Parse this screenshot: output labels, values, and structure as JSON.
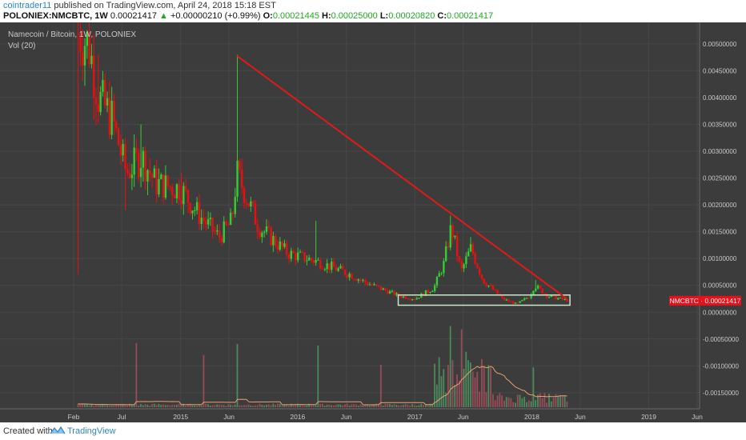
{
  "header": {
    "user": "cointrader11",
    "published": "published on TradingView.com, April 24, 2018 15:18 EST",
    "symbol": "POLONIEX:NMCBTC, 1W",
    "price": "0.00021417",
    "change_arrow": "▲",
    "change": "+0.00000210 (+0.99%)",
    "o_label": "O:",
    "o_value": "0.00021445",
    "h_label": "H:",
    "h_value": "0.00025000",
    "l_label": "L:",
    "l_value": "0.00020820",
    "c_label": "C:",
    "c_value": "0.00021417"
  },
  "legend": {
    "title": "Namecoin / Bitcoin, 1W, POLONIEX",
    "volume": "Vol (20)"
  },
  "price_tag": {
    "label": "NMCBTC · 0.00021417",
    "color": "#e8101a"
  },
  "footer": {
    "created_with": "Created with",
    "brand": "TradingView"
  },
  "colors": {
    "background": "#3c3c3c",
    "up": "#33cc33",
    "down": "#e81010",
    "trendline": "#e01a1a",
    "support_box": "#c8e6c8",
    "volume_ma": "#e8a070"
  },
  "chart_data": {
    "type": "candlestick",
    "title": "Namecoin / Bitcoin, 1W, POLONIEX",
    "x_axis": {
      "tick_labels": [
        "Feb",
        "Jul",
        "2015",
        "Jun",
        "2016",
        "Jun",
        "2017",
        "Jun",
        "2018",
        "Jun",
        "2019",
        "Jun"
      ],
      "tick_dates": [
        "2014-02-01",
        "2014-07-01",
        "2015-01-01",
        "2015-06-01",
        "2016-01-01",
        "2016-06-01",
        "2017-01-01",
        "2017-06-01",
        "2018-01-01",
        "2018-06-01",
        "2019-01-01",
        "2019-06-01"
      ]
    },
    "y_axis": {
      "range": [
        -0.0018,
        0.0054
      ],
      "tick_labels": [
        "0.00500000",
        "0.00450000",
        "0.00400000",
        "0.00350000",
        "0.00300000",
        "0.00250000",
        "0.00200000",
        "0.00150000",
        "0.00100000",
        "0.00050000",
        "0.00000000",
        "-0.00050000",
        "-0.00100000",
        "-0.00150000"
      ],
      "tick_values": [
        0.005,
        0.0045,
        0.004,
        0.0035,
        0.003,
        0.0025,
        0.002,
        0.0015,
        0.001,
        0.0005,
        0.0,
        -0.0005,
        -0.001,
        -0.0015
      ]
    },
    "last_price": 0.00021417,
    "anchors": [
      {
        "date": "2014-02-15",
        "close": 0.0052,
        "high": 0.0054,
        "low": 0.0007
      },
      {
        "date": "2014-03-20",
        "close": 0.005,
        "high": 0.0053
      },
      {
        "date": "2014-04-20",
        "close": 0.004,
        "high": 0.0048
      },
      {
        "date": "2014-06-01",
        "close": 0.0036,
        "high": 0.0042
      },
      {
        "date": "2014-07-15",
        "close": 0.0026,
        "high": 0.0032,
        "low": 0.0019
      },
      {
        "date": "2014-09-01",
        "close": 0.0029,
        "high": 0.0035
      },
      {
        "date": "2014-10-15",
        "close": 0.0024,
        "high": 0.0028
      },
      {
        "date": "2015-01-01",
        "close": 0.0023,
        "high": 0.0026
      },
      {
        "date": "2015-03-01",
        "close": 0.0018
      },
      {
        "date": "2015-05-01",
        "close": 0.0014
      },
      {
        "date": "2015-06-10",
        "close": 0.0017
      },
      {
        "date": "2015-06-25",
        "close": 0.0026,
        "high": 0.0048
      },
      {
        "date": "2015-09-01",
        "close": 0.0016
      },
      {
        "date": "2015-12-01",
        "close": 0.0011
      },
      {
        "date": "2016-03-01",
        "close": 0.00095,
        "high": 0.0017
      },
      {
        "date": "2016-06-15",
        "close": 0.0007
      },
      {
        "date": "2016-08-01",
        "close": 0.00055
      },
      {
        "date": "2016-11-15",
        "close": 0.0003
      },
      {
        "date": "2017-01-01",
        "close": 0.00025
      },
      {
        "date": "2017-03-01",
        "close": 0.00045
      },
      {
        "date": "2017-04-01",
        "close": 0.0009
      },
      {
        "date": "2017-04-25",
        "close": 0.0016,
        "high": 0.0018
      },
      {
        "date": "2017-05-25",
        "close": 0.00075
      },
      {
        "date": "2017-06-25",
        "close": 0.0012,
        "high": 0.0014
      },
      {
        "date": "2017-08-01",
        "close": 0.0006
      },
      {
        "date": "2017-10-01",
        "close": 0.00025
      },
      {
        "date": "2017-11-15",
        "close": 0.00015
      },
      {
        "date": "2017-12-25",
        "close": 0.0003
      },
      {
        "date": "2018-01-10",
        "close": 0.0005,
        "high": 0.0006
      },
      {
        "date": "2018-02-20",
        "close": 0.0003
      },
      {
        "date": "2018-04-24",
        "close": 0.00021417
      }
    ],
    "trendline": {
      "start": {
        "date": "2015-06-25",
        "value": 0.00478
      },
      "end": {
        "date": "2018-04-20",
        "value": 0.00025
      },
      "color": "#e01a1a"
    },
    "support_zone": {
      "x_start": "2016-11-10",
      "x_end": "2018-04-30",
      "y_min": 0.00013,
      "y_max": 0.00032,
      "color": "#c8e6c8"
    },
    "volume": {
      "label": "Vol (20)",
      "spike_dates": [
        "2014-08-15",
        "2015-03-15",
        "2015-06-25",
        "2016-03-05",
        "2016-09-15",
        "2017-04-20",
        "2017-05-25",
        "2017-06-10",
        "2018-01-05"
      ],
      "ma_color": "#e8a070"
    }
  }
}
